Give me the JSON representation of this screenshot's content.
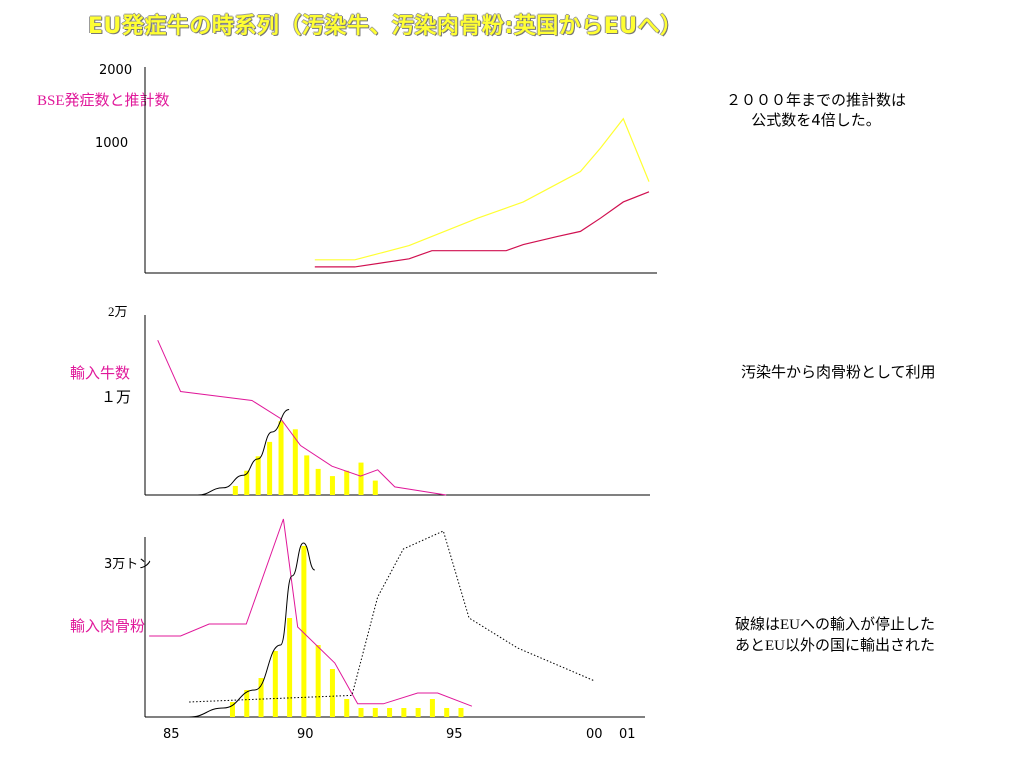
{
  "title": "EU発症牛の時系列（汚染牛、汚染肉骨粉:英国からEUへ）",
  "colors": {
    "title": "#ffff33",
    "series_pink": "#e0189a",
    "series_yellow": "#ffff33",
    "series_red": "#d01050",
    "bar": "#ffff00",
    "black": "#000000"
  },
  "panel1": {
    "tick_top": "2000",
    "tick_mid": "1000",
    "label_latin": "BSE",
    "label_ja": "発症数と推計数",
    "note_line1": "２０００年までの推計数は",
    "note_line2": "公式数を4倍した。"
  },
  "panel2": {
    "tick_top_num": "2",
    "tick_top_unit": "万",
    "label": "輸入牛数",
    "tick_mid": "１万",
    "note": "汚染牛から肉骨粉として利用"
  },
  "panel3": {
    "tick_top": "3万トン",
    "label": "輸入肉骨粉",
    "note_line1_a": "破線は",
    "note_line1_latin": "EU",
    "note_line1_b": "への輸入が停止した",
    "note_line2_a": "あと",
    "note_line2_latin": "EU",
    "note_line2_b": "以外の国に輸出された"
  },
  "x_ticks": [
    "85",
    "90",
    "95",
    "00",
    "01"
  ],
  "chart_data": [
    {
      "type": "line",
      "ylim": [
        0,
        2000
      ],
      "y_ticks": [
        1000,
        2000
      ],
      "series": [
        {
          "x": [
            1990,
            1991.4,
            1993.3,
            1994.1,
            1995.7,
            1996.7,
            1997.3,
            1998.5,
            1999.3,
            2000,
            2000.8,
            2001.7
          ],
          "y": [
            130,
            130,
            270,
            360,
            540,
            640,
            700,
            880,
            1000,
            1230,
            1520,
            900
          ]
        },
        {
          "x": [
            1990,
            1991.4,
            1993.3,
            1994.1,
            1995.7,
            1996.7,
            1997.3,
            1998.5,
            1999.3,
            2000,
            2000.8,
            2001.7
          ],
          "y": [
            60,
            60,
            140,
            220,
            220,
            220,
            280,
            360,
            410,
            540,
            700,
            800
          ]
        }
      ]
    },
    {
      "type": "line",
      "ylim": [
        0,
        20000
      ],
      "y_ticks": [
        10000,
        20000
      ],
      "series": [
        {
          "x": [
            1984.5,
            1985.3,
            1987.8,
            1988.8,
            1989.5,
            1990.6,
            1991.6,
            1992.2,
            1992.8,
            1994.6
          ],
          "y": [
            17200,
            11500,
            10500,
            8500,
            5500,
            3200,
            2100,
            2800,
            900,
            0
          ]
        }
      ],
      "curve": {
        "x": [
          1985.9,
          1986.8,
          1987.5,
          1988,
          1988.5,
          1989.1
        ],
        "y": [
          0,
          800,
          2200,
          4000,
          7000,
          9500
        ]
      },
      "bars": {
        "x": [
          1987.2,
          1987.6,
          1988,
          1988.4,
          1988.8,
          1989.3,
          1989.7,
          1990.1,
          1990.6,
          1991.1,
          1991.6,
          1992.1
        ],
        "y": [
          1000,
          2700,
          4300,
          5900,
          8200,
          7300,
          4400,
          2900,
          2100,
          2700,
          3600,
          1600
        ]
      }
    },
    {
      "type": "line",
      "ylim": [
        0,
        30000
      ],
      "y_ticks": [
        30000
      ],
      "series": [
        {
          "x": [
            1984.2,
            1985.3,
            1986.3,
            1987.6,
            1988.9,
            1989.4,
            1990.7,
            1991.5,
            1992.4,
            1993.6,
            1994.3,
            1995.5
          ],
          "y": [
            13500,
            13500,
            15500,
            15500,
            33000,
            15000,
            9000,
            2200,
            2200,
            4000,
            4000,
            1800
          ]
        },
        {
          "x": [
            1985.6,
            1991.3,
            1992.2,
            1993.1,
            1994.5,
            1995.4,
            1997.1,
            1999.8
          ],
          "y": [
            2500,
            3600,
            20000,
            28000,
            31000,
            16500,
            11500,
            6000
          ]
        }
      ],
      "curve": {
        "x": [
          1985.6,
          1986.8,
          1987.9,
          1988.8,
          1989.2,
          1989.6,
          1990
        ],
        "y": [
          0,
          1500,
          4500,
          12000,
          23500,
          29000,
          24500
        ]
      },
      "bars": {
        "x": [
          1987.1,
          1987.6,
          1988.1,
          1988.6,
          1989.1,
          1989.6,
          1990.1,
          1990.6,
          1991.1,
          1991.6,
          1992.1,
          1992.6,
          1993.1,
          1993.6,
          1994.1,
          1994.6,
          1995.1
        ],
        "y": [
          2500,
          4500,
          6500,
          11000,
          16500,
          28500,
          12000,
          8000,
          3000,
          1500,
          1500,
          1500,
          1500,
          1500,
          3000,
          1500,
          1500
        ]
      }
    }
  ]
}
